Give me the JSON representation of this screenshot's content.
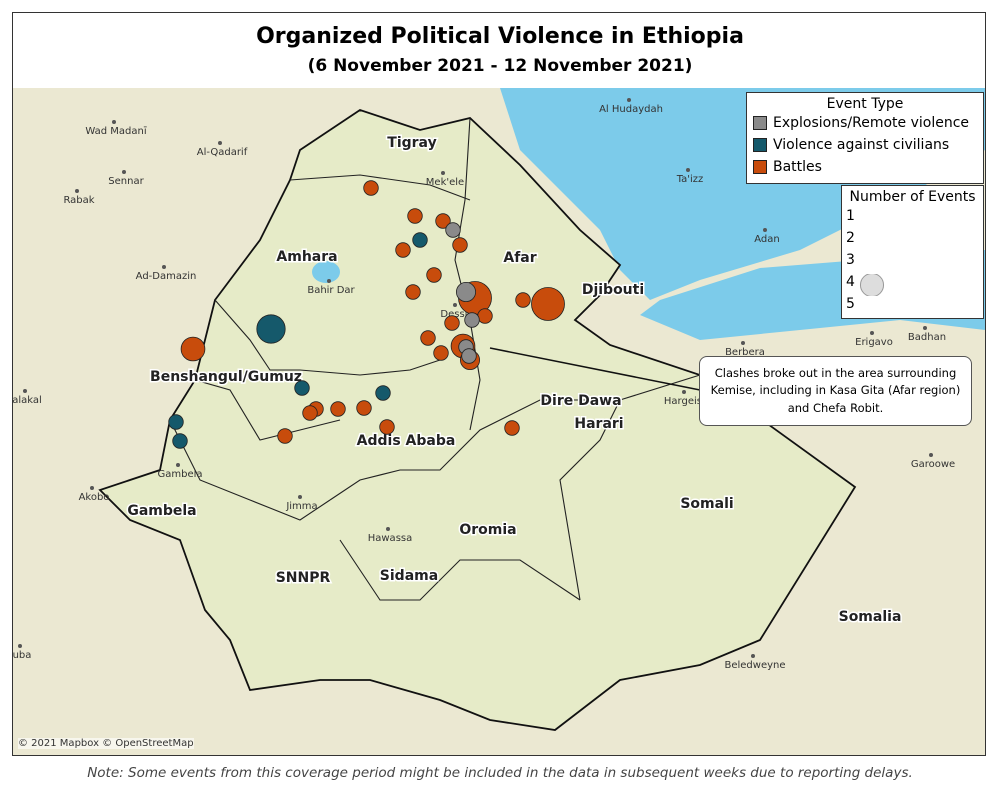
{
  "title": "Organized Political Violence in Ethiopia",
  "subtitle": "(6 November 2021 - 12 November 2021)",
  "legend": {
    "event_type": {
      "title": "Event Type",
      "items": [
        {
          "label": "Explosions/Remote violence",
          "color": "#8a8a8a"
        },
        {
          "label": "Violence against civilians",
          "color": "#15596b"
        },
        {
          "label": "Battles",
          "color": "#c84c0c"
        }
      ]
    },
    "size": {
      "title": "Number of Events",
      "items": [
        1,
        2,
        3,
        4,
        5
      ]
    }
  },
  "regions": [
    "Tigray",
    "Amhara",
    "Afar",
    "Djibouti",
    "Benshangul/Gumuz",
    "Addis Ababa",
    "Dire Dawa",
    "Harari",
    "Gambela",
    "Oromia",
    "Somali",
    "SNNPR",
    "Sidama",
    "Somalia"
  ],
  "places": [
    "Wad Madanī",
    "Al-Qadarif",
    "Sennar",
    "Rabak",
    "Ad-Damazin",
    "Mek'ele",
    "Bahir Dar",
    "Dessie",
    "Gambela",
    "Akobo",
    "Jimma",
    "Hawassa",
    "Al Hudaydah",
    "Ta'izz",
    "Adan",
    "Berbera",
    "Erigavo",
    "Badhan",
    "Hargeisa",
    "Garoowe",
    "Beledweyne",
    "alakal",
    "uba"
  ],
  "events": [
    {
      "type": "Battles",
      "count": 1
    },
    {
      "type": "Battles",
      "count": 1
    },
    {
      "type": "Battles",
      "count": 1
    },
    {
      "type": "Battles",
      "count": 1
    },
    {
      "type": "Battles",
      "count": 1
    },
    {
      "type": "Battles",
      "count": 1
    },
    {
      "type": "Battles",
      "count": 1
    },
    {
      "type": "Battles",
      "count": 5
    },
    {
      "type": "Battles",
      "count": 5
    },
    {
      "type": "Battles",
      "count": 1
    },
    {
      "type": "Battles",
      "count": 1
    },
    {
      "type": "Battles",
      "count": 1
    },
    {
      "type": "Battles",
      "count": 1
    },
    {
      "type": "Battles",
      "count": 3
    },
    {
      "type": "Battles",
      "count": 2
    },
    {
      "type": "Battles",
      "count": 3
    },
    {
      "type": "Battles",
      "count": 1
    },
    {
      "type": "Battles",
      "count": 1
    },
    {
      "type": "Battles",
      "count": 1
    },
    {
      "type": "Battles",
      "count": 1
    },
    {
      "type": "Battles",
      "count": 1
    },
    {
      "type": "Battles",
      "count": 1
    },
    {
      "type": "Battles",
      "count": 1
    },
    {
      "type": "Battles",
      "count": 1
    },
    {
      "type": "Violence against civilians",
      "count": 1
    },
    {
      "type": "Violence against civilians",
      "count": 4
    },
    {
      "type": "Violence against civilians",
      "count": 1
    },
    {
      "type": "Violence against civilians",
      "count": 1
    },
    {
      "type": "Violence against civilians",
      "count": 1
    },
    {
      "type": "Violence against civilians",
      "count": 1
    },
    {
      "type": "Explosions/Remote violence",
      "count": 1
    },
    {
      "type": "Explosions/Remote violence",
      "count": 2
    },
    {
      "type": "Explosions/Remote violence",
      "count": 1
    },
    {
      "type": "Explosions/Remote violence",
      "count": 1
    },
    {
      "type": "Explosions/Remote violence",
      "count": 1
    }
  ],
  "annotation": "Clashes broke out in the area surrounding Kemise, including in Kasa Gita (Afar region) and Chefa Robit.",
  "attribution": "© 2021 Mapbox © OpenStreetMap",
  "note": "Note: Some events from this coverage period might be included in the data in subsequent weeks due to reporting delays."
}
